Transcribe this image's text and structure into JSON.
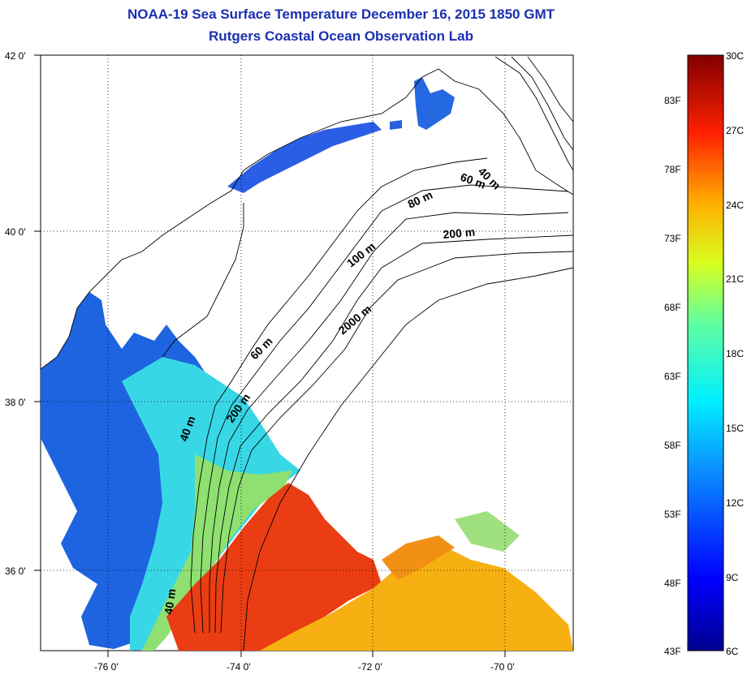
{
  "title": {
    "line1": "NOAA-19 Sea Surface Temperature December 16, 2015 1850 GMT",
    "line2": "Rutgers Coastal Ocean Observation Lab"
  },
  "map": {
    "lat_ticks": [
      "42 0'",
      "40 0'",
      "38 0'",
      "36 0'"
    ],
    "lon_ticks": [
      "-76 0'",
      "-74 0'",
      "-72 0'",
      "-70 0'"
    ],
    "contour_labels": [
      "40 m",
      "60 m",
      "80 m",
      "200 m",
      "100 m",
      "2000 m",
      "60 m",
      "200 m",
      "40 m",
      "40 m"
    ],
    "colors": {
      "land": "#ffffff",
      "water_cold": "#1e5bd8",
      "water_mid": "#2fd8e0",
      "water_warm": "#e83a12"
    }
  },
  "colorbar": {
    "f_labels": [
      "83F",
      "78F",
      "73F",
      "68F",
      "63F",
      "58F",
      "53F",
      "48F",
      "43F"
    ],
    "c_labels": [
      "30C",
      "27C",
      "24C",
      "21C",
      "18C",
      "15C",
      "12C",
      "9C",
      "6C"
    ]
  }
}
